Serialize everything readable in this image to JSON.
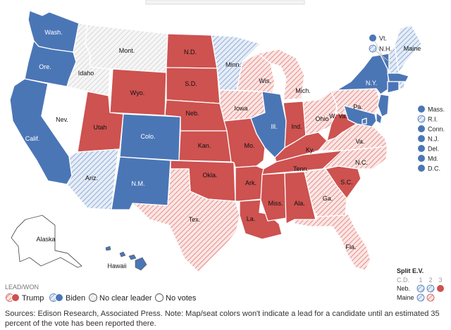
{
  "colors": {
    "trump_won": "#cd5250",
    "trump_lead": "#f3b9b6",
    "biden_won": "#4b76b6",
    "biden_lead": "#b9cbe6",
    "no_leader": "#d9d9d9",
    "no_votes": "#ffffff"
  },
  "states": {
    "WA": {
      "label": "Wash.",
      "status": "biden_won"
    },
    "OR": {
      "label": "Ore.",
      "status": "biden_won"
    },
    "CA": {
      "label": "Calif.",
      "status": "biden_won"
    },
    "NV": {
      "label": "Nev.",
      "status": "no_votes"
    },
    "ID": {
      "label": "Idaho",
      "status": "no_leader"
    },
    "MT": {
      "label": "Mont.",
      "status": "no_leader"
    },
    "WY": {
      "label": "Wyo.",
      "status": "trump_won"
    },
    "UT": {
      "label": "Utah",
      "status": "trump_won"
    },
    "AZ": {
      "label": "Ariz.",
      "status": "biden_lead"
    },
    "CO": {
      "label": "Colo.",
      "status": "biden_won"
    },
    "NM": {
      "label": "N.M.",
      "status": "biden_won"
    },
    "ND": {
      "label": "N.D.",
      "status": "trump_won"
    },
    "SD": {
      "label": "S.D.",
      "status": "trump_won"
    },
    "NE": {
      "label": "Neb.",
      "status": "trump_won"
    },
    "KS": {
      "label": "Kan.",
      "status": "trump_won"
    },
    "OK": {
      "label": "Okla.",
      "status": "trump_won"
    },
    "TX": {
      "label": "Tex.",
      "status": "trump_lead"
    },
    "MN": {
      "label": "Minn.",
      "status": "biden_lead"
    },
    "IA": {
      "label": "Iowa",
      "status": "trump_lead"
    },
    "MO": {
      "label": "Mo.",
      "status": "trump_won"
    },
    "AR": {
      "label": "Ark.",
      "status": "trump_won"
    },
    "LA": {
      "label": "La.",
      "status": "trump_won"
    },
    "WI": {
      "label": "Wis.",
      "status": "trump_lead"
    },
    "IL": {
      "label": "Ill.",
      "status": "biden_won"
    },
    "MI": {
      "label": "Mich.",
      "status": "trump_lead"
    },
    "IN": {
      "label": "Ind.",
      "status": "trump_won"
    },
    "OH": {
      "label": "Ohio",
      "status": "trump_lead"
    },
    "KY": {
      "label": "Ky.",
      "status": "trump_won"
    },
    "TN": {
      "label": "Tenn.",
      "status": "trump_won"
    },
    "MS": {
      "label": "Miss.",
      "status": "trump_won"
    },
    "AL": {
      "label": "Ala.",
      "status": "trump_won"
    },
    "GA": {
      "label": "Ga.",
      "status": "trump_lead"
    },
    "FL": {
      "label": "Fla.",
      "status": "trump_lead"
    },
    "SC": {
      "label": "S.C.",
      "status": "trump_won"
    },
    "NC": {
      "label": "N.C.",
      "status": "trump_lead"
    },
    "VA": {
      "label": "Va.",
      "status": "trump_lead"
    },
    "WV": {
      "label": "W. Va.",
      "status": "trump_won"
    },
    "PA": {
      "label": "Pa.",
      "status": "trump_lead"
    },
    "NY": {
      "label": "N.Y.",
      "status": "biden_won"
    },
    "ME": {
      "label": "Maine",
      "status": "biden_lead"
    },
    "AK": {
      "label": "Alaska",
      "status": "no_votes"
    },
    "HI": {
      "label": "Hawaii",
      "status": "biden_won"
    }
  },
  "northeast_callouts": [
    {
      "label": "Vt.",
      "status": "biden_won"
    },
    {
      "label": "N.H.",
      "status": "biden_lead"
    }
  ],
  "east_callouts": [
    {
      "label": "Mass.",
      "status": "biden_won"
    },
    {
      "label": "R.I.",
      "status": "biden_lead"
    },
    {
      "label": "Conn.",
      "status": "biden_won"
    },
    {
      "label": "N.J.",
      "status": "biden_won"
    },
    {
      "label": "Del.",
      "status": "biden_won"
    },
    {
      "label": "Md.",
      "status": "biden_won"
    },
    {
      "label": "D.C.",
      "status": "biden_won"
    }
  ],
  "legend": {
    "title": "LEAD/WON",
    "items": [
      {
        "label": "Trump",
        "lead": "trump_lead",
        "won": "trump_won"
      },
      {
        "label": "Biden",
        "lead": "biden_lead",
        "won": "biden_won"
      },
      {
        "label": "No clear leader",
        "single": "no_leader"
      },
      {
        "label": "No votes",
        "single": "no_votes"
      }
    ]
  },
  "split_ev": {
    "title": "Split E.V.",
    "cd_label": "C.D.",
    "districts": [
      "1",
      "2",
      "3"
    ],
    "rows": [
      {
        "state": "Neb.",
        "districts": [
          "biden_lead",
          "biden_lead",
          "trump_won"
        ]
      },
      {
        "state": "Maine",
        "districts": [
          "biden_lead",
          "trump_lead"
        ]
      }
    ]
  },
  "source_note": "Sources: Edison Research, Associated Press. Note: Map/seat colors won't indicate a lead for a candidate until an estimated 35 percent of the vote has been reported there."
}
